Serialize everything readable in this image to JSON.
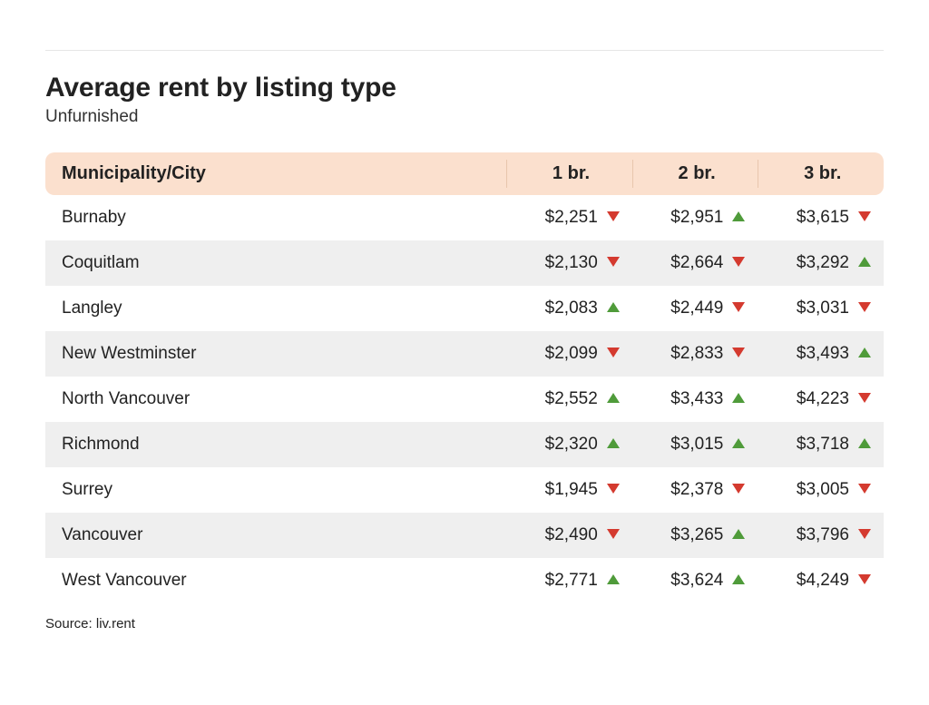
{
  "title": "Average rent by listing type",
  "subtitle": "Unfurnished",
  "source_label": "Source:",
  "source_value": "liv.rent",
  "table": {
    "type": "table",
    "header_bg": "#fbe0ce",
    "header_divider": "#e8c6ad",
    "row_even_bg": "#efefef",
    "row_odd_bg": "#ffffff",
    "arrow_up_color": "#4f9b3a",
    "arrow_down_color": "#d43a2f",
    "font_size_header": 20,
    "font_size_body": 19,
    "columns": [
      {
        "key": "city",
        "label": "Municipality/City",
        "width": "55%",
        "align": "left"
      },
      {
        "key": "br1",
        "label": "1 br.",
        "width": "15%",
        "align": "center"
      },
      {
        "key": "br2",
        "label": "2 br.",
        "width": "15%",
        "align": "center"
      },
      {
        "key": "br3",
        "label": "3 br.",
        "width": "15%",
        "align": "center"
      }
    ],
    "rows": [
      {
        "city": "Burnaby",
        "br1": {
          "value": "$2,251",
          "trend": "down"
        },
        "br2": {
          "value": "$2,951",
          "trend": "up"
        },
        "br3": {
          "value": "$3,615",
          "trend": "down"
        }
      },
      {
        "city": "Coquitlam",
        "br1": {
          "value": "$2,130",
          "trend": "down"
        },
        "br2": {
          "value": "$2,664",
          "trend": "down"
        },
        "br3": {
          "value": "$3,292",
          "trend": "up"
        }
      },
      {
        "city": "Langley",
        "br1": {
          "value": "$2,083",
          "trend": "up"
        },
        "br2": {
          "value": "$2,449",
          "trend": "down"
        },
        "br3": {
          "value": "$3,031",
          "trend": "down"
        }
      },
      {
        "city": "New Westminster",
        "br1": {
          "value": "$2,099",
          "trend": "down"
        },
        "br2": {
          "value": "$2,833",
          "trend": "down"
        },
        "br3": {
          "value": "$3,493",
          "trend": "up"
        }
      },
      {
        "city": "North Vancouver",
        "br1": {
          "value": "$2,552",
          "trend": "up"
        },
        "br2": {
          "value": "$3,433",
          "trend": "up"
        },
        "br3": {
          "value": "$4,223",
          "trend": "down"
        }
      },
      {
        "city": "Richmond",
        "br1": {
          "value": "$2,320",
          "trend": "up"
        },
        "br2": {
          "value": "$3,015",
          "trend": "up"
        },
        "br3": {
          "value": "$3,718",
          "trend": "up"
        }
      },
      {
        "city": "Surrey",
        "br1": {
          "value": "$1,945",
          "trend": "down"
        },
        "br2": {
          "value": "$2,378",
          "trend": "down"
        },
        "br3": {
          "value": "$3,005",
          "trend": "down"
        }
      },
      {
        "city": "Vancouver",
        "br1": {
          "value": "$2,490",
          "trend": "down"
        },
        "br2": {
          "value": "$3,265",
          "trend": "up"
        },
        "br3": {
          "value": "$3,796",
          "trend": "down"
        }
      },
      {
        "city": "West Vancouver",
        "br1": {
          "value": "$2,771",
          "trend": "up"
        },
        "br2": {
          "value": "$3,624",
          "trend": "up"
        },
        "br3": {
          "value": "$4,249",
          "trend": "down"
        }
      }
    ]
  }
}
